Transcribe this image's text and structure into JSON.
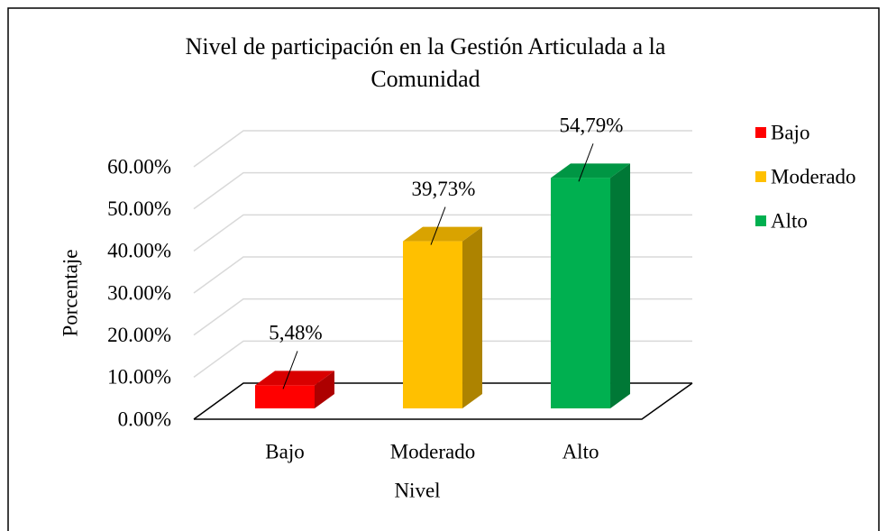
{
  "chart_data": {
    "type": "bar3d",
    "title": "Nivel de participación en la Gestión Articulada a la Comunidad",
    "x_label": "Nivel",
    "y_label": "Porcentaje",
    "categories": [
      "Bajo",
      "Moderado",
      "Alto"
    ],
    "values": [
      5.48,
      39.73,
      54.79
    ],
    "value_labels": [
      "5,48%",
      "39,73%",
      "54,79%"
    ],
    "colors": [
      "#ff0000",
      "#ffc000",
      "#00b050"
    ],
    "ylim": [
      0,
      60
    ],
    "yticks": [
      {
        "value": 0,
        "label": "0.00%"
      },
      {
        "value": 10,
        "label": "10.00%"
      },
      {
        "value": 20,
        "label": "20.00%"
      },
      {
        "value": 30,
        "label": "30.00%"
      },
      {
        "value": 40,
        "label": "40.00%"
      },
      {
        "value": 50,
        "label": "50.00%"
      },
      {
        "value": 60,
        "label": "60.00%"
      }
    ],
    "grid": true,
    "legend": "right"
  }
}
